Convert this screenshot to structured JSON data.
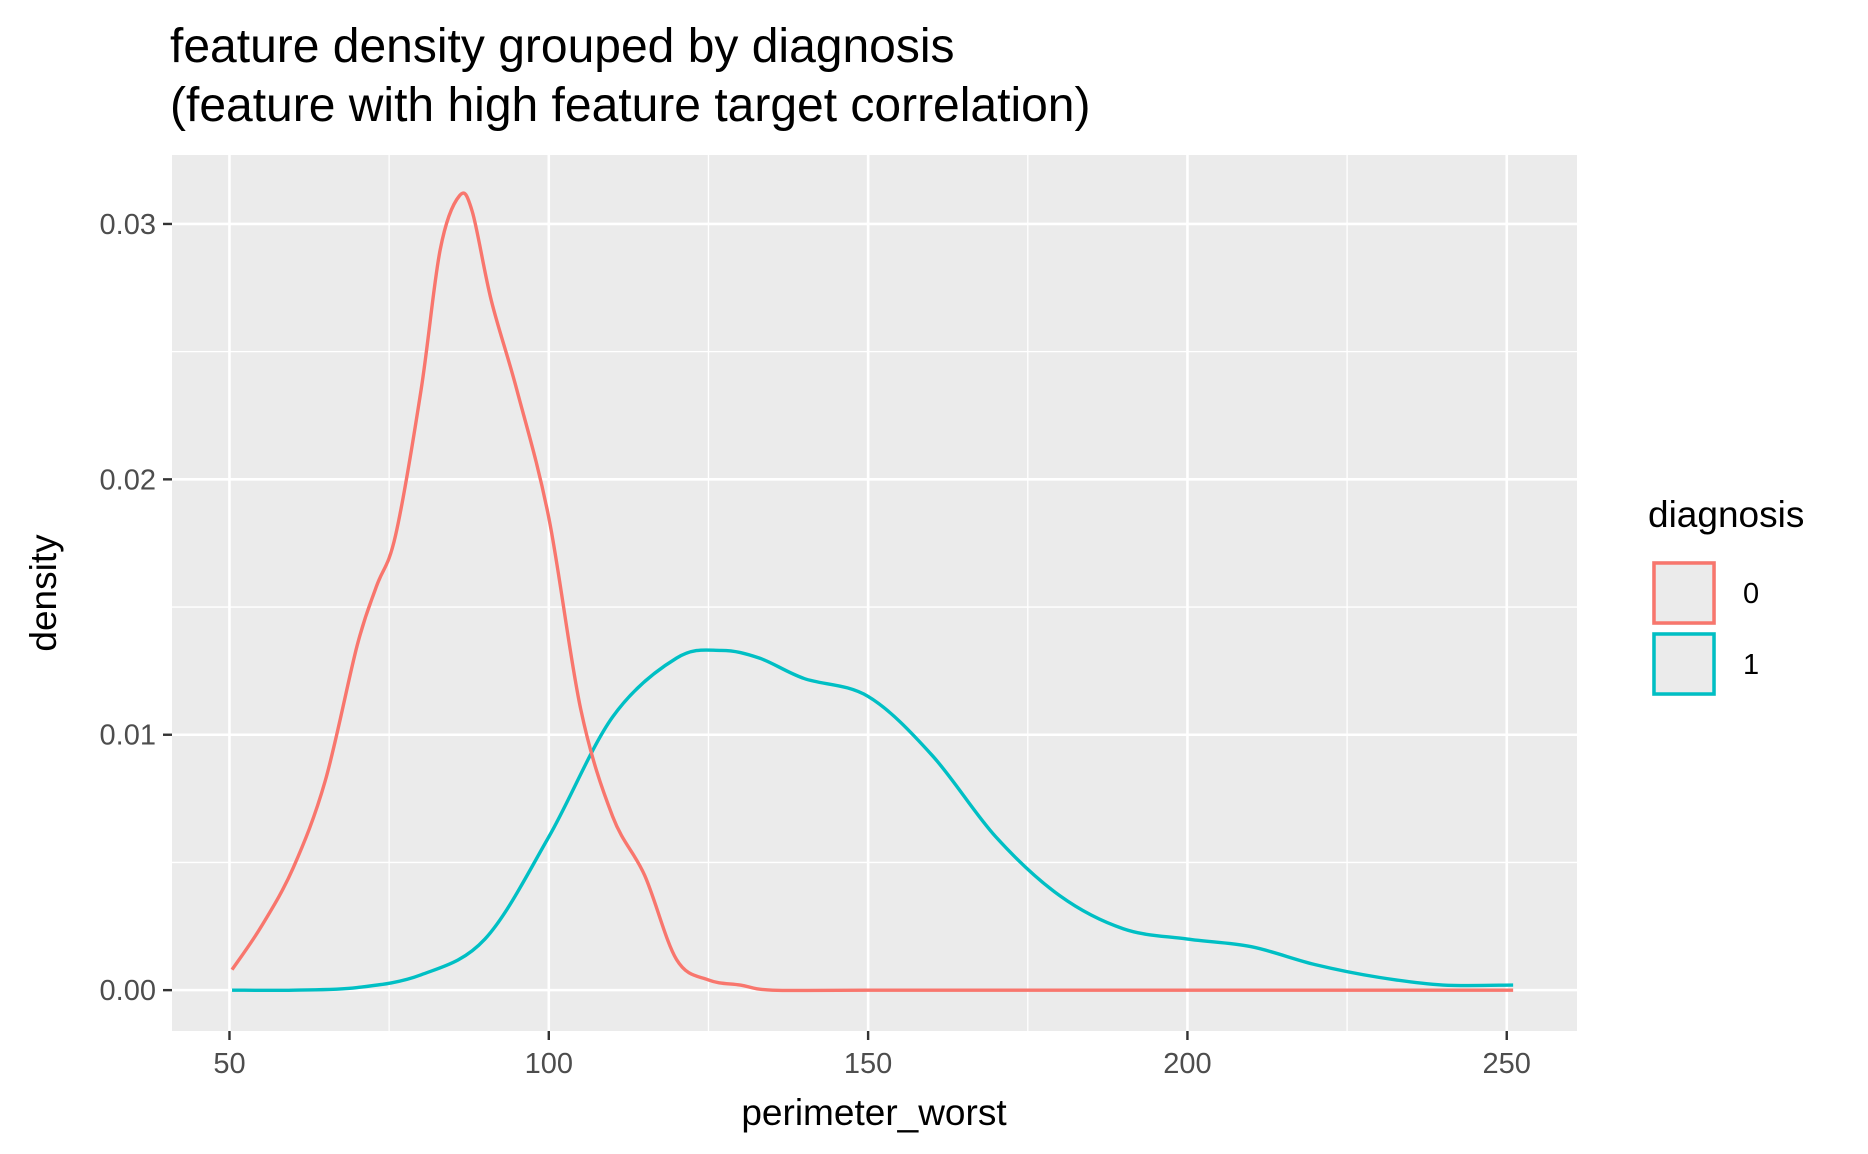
{
  "chart_data": {
    "type": "line",
    "title_line1": "feature density grouped by diagnosis",
    "title_line2": "(feature with high feature target correlation)",
    "xlabel": "perimeter_worst",
    "ylabel": "density",
    "xlim": [
      41,
      261
    ],
    "ylim": [
      -0.0016,
      0.0327
    ],
    "x_ticks": [
      50,
      100,
      150,
      200,
      250
    ],
    "x_tick_labels": [
      "50",
      "100",
      "150",
      "200",
      "250"
    ],
    "y_ticks": [
      0.0,
      0.01,
      0.02,
      0.03
    ],
    "y_tick_labels": [
      "0.00",
      "0.01",
      "0.02",
      "0.03"
    ],
    "grid": true,
    "legend": {
      "title": "diagnosis",
      "placement": "right"
    },
    "series": [
      {
        "name": "0",
        "color": "#F8766D",
        "points": [
          [
            50.4,
            0.0008
          ],
          [
            55,
            0.0025
          ],
          [
            60,
            0.0048
          ],
          [
            65,
            0.0082
          ],
          [
            70,
            0.0135
          ],
          [
            73,
            0.0158
          ],
          [
            76,
            0.0178
          ],
          [
            80,
            0.0235
          ],
          [
            83,
            0.029
          ],
          [
            86,
            0.0311
          ],
          [
            88,
            0.0305
          ],
          [
            91,
            0.027
          ],
          [
            95,
            0.0235
          ],
          [
            100,
            0.0185
          ],
          [
            105,
            0.011
          ],
          [
            110,
            0.0068
          ],
          [
            115,
            0.0045
          ],
          [
            120,
            0.0012
          ],
          [
            125,
            0.0004
          ],
          [
            130,
            0.0002
          ],
          [
            135,
            0.0
          ],
          [
            150,
            0.0
          ],
          [
            200,
            0.0
          ],
          [
            251,
            0.0
          ]
        ]
      },
      {
        "name": "1",
        "color": "#00BFC4",
        "points": [
          [
            50.4,
            0.0
          ],
          [
            60,
            0.0
          ],
          [
            70,
            0.0001
          ],
          [
            80,
            0.0006
          ],
          [
            90,
            0.002
          ],
          [
            100,
            0.006
          ],
          [
            110,
            0.0107
          ],
          [
            120,
            0.013
          ],
          [
            127,
            0.0133
          ],
          [
            133,
            0.013
          ],
          [
            140,
            0.0122
          ],
          [
            150,
            0.0115
          ],
          [
            160,
            0.0092
          ],
          [
            170,
            0.006
          ],
          [
            180,
            0.0037
          ],
          [
            190,
            0.0024
          ],
          [
            200,
            0.002
          ],
          [
            210,
            0.0017
          ],
          [
            220,
            0.001
          ],
          [
            230,
            0.0005
          ],
          [
            240,
            0.0002
          ],
          [
            251,
            0.0002
          ]
        ]
      }
    ]
  },
  "colors": {
    "panel_background": "#EBEBEB",
    "grid_major": "#FFFFFF",
    "tick_text": "#4D4D4D"
  }
}
